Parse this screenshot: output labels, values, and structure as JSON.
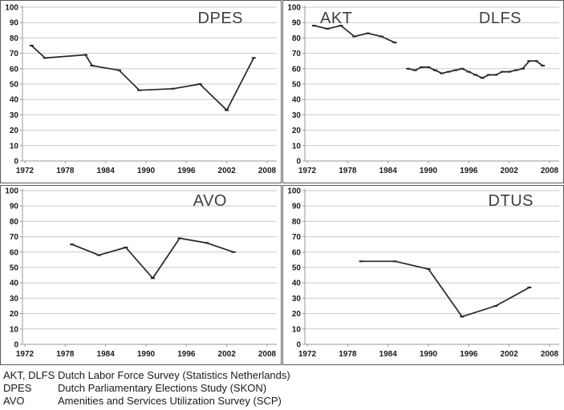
{
  "colors": {
    "line": "#262626",
    "grid": "#c9c9c9",
    "axis": "#9a9a9a",
    "tick_label": "#1a1a1a",
    "title": "#3f3f3f",
    "panel_border": "#595959",
    "footer_text": "#1a1a1a"
  },
  "chart_data": [
    {
      "type": "line",
      "row": 0,
      "grid": true,
      "xlim": [
        1972,
        2008
      ],
      "ylim": [
        0,
        100
      ],
      "xticks": [
        1972,
        1978,
        1984,
        1990,
        1996,
        2002,
        2008
      ],
      "ytick_step": 10,
      "labels": [
        {
          "text": "DPES",
          "x": 302,
          "y": 28,
          "anchor": "end"
        }
      ],
      "series": [
        {
          "name": "DPES",
          "x": [
            1973,
            1975,
            1981,
            1982,
            1986,
            1989,
            1994,
            1998,
            2002,
            2006
          ],
          "y": [
            75,
            67,
            69,
            62,
            59,
            46,
            47,
            50,
            33,
            67
          ]
        }
      ]
    },
    {
      "type": "line",
      "row": 0,
      "grid": true,
      "xlim": [
        1972,
        2008
      ],
      "ylim": [
        0,
        100
      ],
      "xticks": [
        1972,
        1978,
        1984,
        1990,
        1996,
        2002,
        2008
      ],
      "ytick_step": 10,
      "labels": [
        {
          "text": "AKT",
          "x": 46,
          "y": 28,
          "anchor": "start"
        },
        {
          "text": "DLFS",
          "x": 297,
          "y": 28,
          "anchor": "end"
        }
      ],
      "series": [
        {
          "name": "AKT",
          "x": [
            1973,
            1975,
            1977,
            1979,
            1981,
            1983,
            1985
          ],
          "y": [
            88,
            86,
            88,
            81,
            83,
            81,
            77
          ]
        },
        {
          "name": "DLFS",
          "x": [
            1987,
            1988,
            1989,
            1990,
            1991,
            1992,
            1993,
            1994,
            1995,
            1996,
            1997,
            1998,
            1999,
            2000,
            2001,
            2002,
            2003,
            2004,
            2005,
            2006,
            2007
          ],
          "y": [
            60,
            59,
            61,
            61,
            59,
            57,
            58,
            59,
            60,
            58,
            56,
            54,
            56,
            56,
            58,
            58,
            59,
            60,
            65,
            65,
            62
          ]
        }
      ]
    },
    {
      "type": "line",
      "row": 1,
      "grid": true,
      "xlim": [
        1972,
        2008
      ],
      "ylim": [
        0,
        100
      ],
      "xticks": [
        1972,
        1978,
        1984,
        1990,
        1996,
        2002,
        2008
      ],
      "ytick_step": 10,
      "labels": [
        {
          "text": "AVO",
          "x": 282,
          "y": 25,
          "anchor": "end"
        }
      ],
      "series": [
        {
          "name": "AVO",
          "x": [
            1979,
            1983,
            1987,
            1991,
            1995,
            1999,
            2003
          ],
          "y": [
            65,
            58,
            63,
            43,
            69,
            66,
            60
          ]
        }
      ]
    },
    {
      "type": "line",
      "row": 1,
      "grid": true,
      "xlim": [
        1972,
        2008
      ],
      "ylim": [
        0,
        100
      ],
      "xticks": [
        1972,
        1978,
        1984,
        1990,
        1996,
        2002,
        2008
      ],
      "ytick_step": 10,
      "labels": [
        {
          "text": "DTUS",
          "x": 312,
          "y": 25,
          "anchor": "end"
        }
      ],
      "series": [
        {
          "name": "DTUS",
          "x": [
            1980,
            1985,
            1990,
            1995,
            2000,
            2005
          ],
          "y": [
            54,
            54,
            49,
            18,
            25,
            37
          ]
        }
      ]
    }
  ],
  "footer": {
    "entries": [
      {
        "term": "AKT, DLFS",
        "desc": "Dutch Labor Force Survey (Statistics Netherlands)"
      },
      {
        "term": "DPES",
        "desc": "Dutch Parliamentary Elections Study (SKON)"
      },
      {
        "term": "AVO",
        "desc": "Amenities and Services Utilization Survey (SCP)"
      }
    ]
  }
}
